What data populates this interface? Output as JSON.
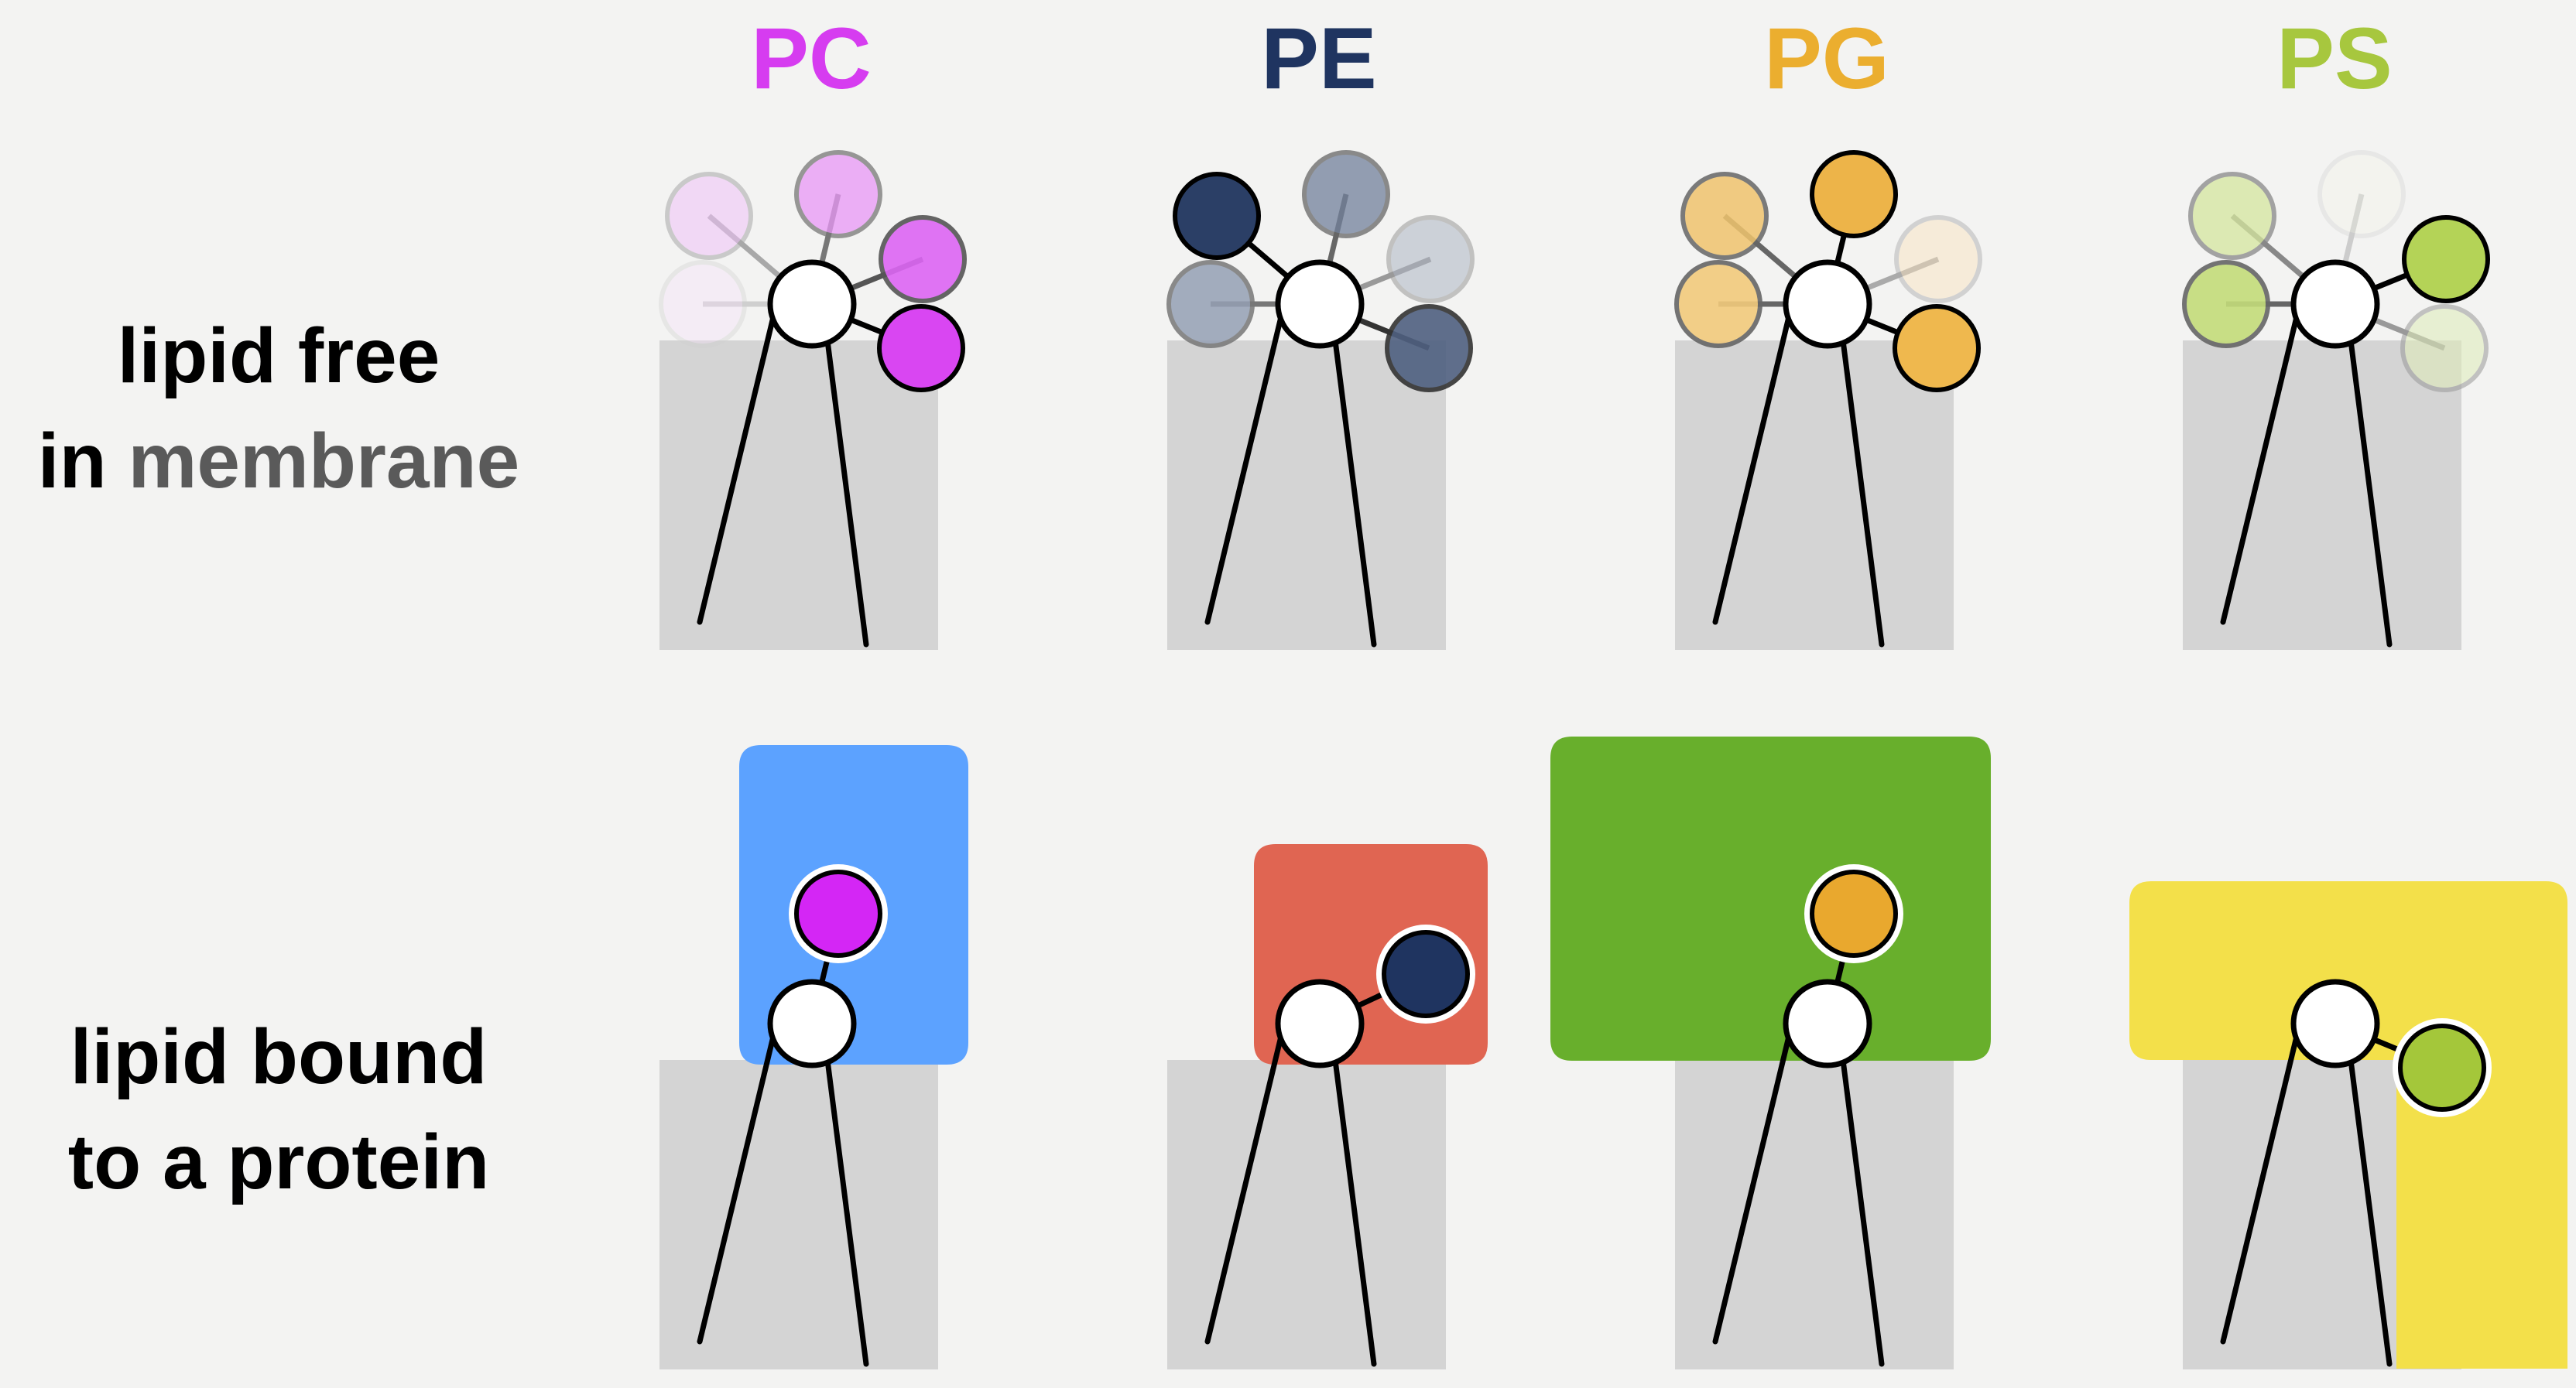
{
  "row_labels": {
    "free": {
      "line1": "lipid free",
      "line2_prefix": "in ",
      "line2_muted": "membrane"
    },
    "bound": {
      "line1": "lipid bound",
      "line2": "to a protein"
    }
  },
  "lipids": [
    {
      "name": "PC",
      "color": "#d63cf0",
      "free_headgroup_colors": [
        "#f7e0fb",
        "#f0c2f8",
        "#e998f6",
        "#dd66f4",
        "#d946f2"
      ],
      "protein_color": "#5ca2ff",
      "bound_headgroup_color": "#d426f5"
    },
    {
      "name": "PE",
      "color": "#1f3460",
      "free_headgroup_colors": [
        "#95a0b4",
        "#2b3f66",
        "#72819c",
        "#aeb6c4",
        "#4f6080"
      ],
      "protein_color": "#e06552",
      "bound_headgroup_color": "#1f3460"
    },
    {
      "name": "PG",
      "color": "#ebae2f",
      "free_headgroup_colors": [
        "#f2ca7c",
        "#f0c46e",
        "#edb449",
        "#fae3bd",
        "#efb84e"
      ],
      "protein_color": "#68af2c",
      "bound_headgroup_color": "#e9a82e"
    },
    {
      "name": "PS",
      "color": "#a7c73e",
      "free_headgroup_colors": [
        "#c4dc7a",
        "#d5e69e",
        "#f3f5e6",
        "#b4d357",
        "#dfecb8"
      ],
      "protein_color": "#f3e04a",
      "bound_headgroup_color": "#a4c73a"
    }
  ]
}
